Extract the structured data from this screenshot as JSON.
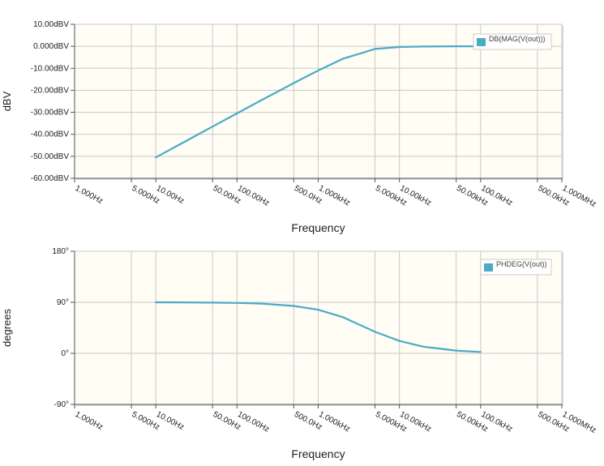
{
  "chart_data": [
    {
      "type": "line",
      "xlabel": "Frequency",
      "ylabel": "dBV",
      "x_scale": "log",
      "xlim": [
        1,
        1000000
      ],
      "ylim": [
        -60,
        10
      ],
      "x_ticks": [
        1,
        5,
        10,
        50,
        100,
        500,
        1000,
        5000,
        10000,
        50000,
        100000,
        500000,
        1000000
      ],
      "x_tick_labels": [
        "1.000Hz",
        "5.000Hz",
        "10.00Hz",
        "50.00Hz",
        "100.00Hz",
        "500.0Hz",
        "1.000kHz",
        "5.000kHz",
        "10.00kHz",
        "50.00kHz",
        "100.0kHz",
        "500.0kHz",
        "1.000MHz"
      ],
      "y_ticks": [
        10,
        0,
        -10,
        -20,
        -30,
        -40,
        -50,
        -60
      ],
      "y_tick_labels": [
        "10.00dBV",
        "0.000dBV",
        "-10.00dBV",
        "-20.00dBV",
        "-30.00dBV",
        "-40.00dBV",
        "-50.00dBV",
        "-60.00dBV"
      ],
      "grid": true,
      "legend_position": "top-right",
      "series": [
        {
          "name": "DB(MAG(V(out)))",
          "color": "#4aabc6",
          "x": [
            10,
            20,
            50,
            100,
            200,
            500,
            1000,
            2000,
            5000,
            10000,
            20000,
            50000,
            100000
          ],
          "y": [
            -50.5,
            -44.5,
            -36.5,
            -30.5,
            -24.5,
            -16.7,
            -11.0,
            -5.7,
            -1.2,
            -0.3,
            -0.1,
            0,
            0
          ]
        }
      ]
    },
    {
      "type": "line",
      "xlabel": "Frequency",
      "ylabel": "degrees",
      "x_scale": "log",
      "xlim": [
        1,
        1000000
      ],
      "ylim": [
        -90,
        180
      ],
      "x_ticks": [
        1,
        5,
        10,
        50,
        100,
        500,
        1000,
        5000,
        10000,
        50000,
        100000,
        500000,
        1000000
      ],
      "x_tick_labels": [
        "1.000Hz",
        "5.000Hz",
        "10.00Hz",
        "50.00Hz",
        "100.00Hz",
        "500.0Hz",
        "1.000kHz",
        "5.000kHz",
        "10.00kHz",
        "50.00kHz",
        "100.0kHz",
        "500.0kHz",
        "1.000MHz"
      ],
      "y_ticks": [
        180,
        90,
        0,
        -90
      ],
      "y_tick_labels": [
        "180°",
        "90°",
        "0°",
        "-90°"
      ],
      "grid": true,
      "legend_position": "top-right",
      "series": [
        {
          "name": "PHDEG(V(out))",
          "color": "#4aabc6",
          "x": [
            10,
            20,
            50,
            100,
            200,
            500,
            1000,
            2000,
            5000,
            10000,
            20000,
            50000,
            100000
          ],
          "y": [
            90,
            89.9,
            89.4,
            88.9,
            87.7,
            83.6,
            76.8,
            63.8,
            38.0,
            21.8,
            11.5,
            4.8,
            2.4
          ]
        }
      ]
    }
  ],
  "style": {
    "plot_background": "#fffdf4",
    "grid_color": "#c8c8c8",
    "axis_color": "#555555",
    "line_color": "#4aabc6",
    "text_color": "#222222"
  }
}
